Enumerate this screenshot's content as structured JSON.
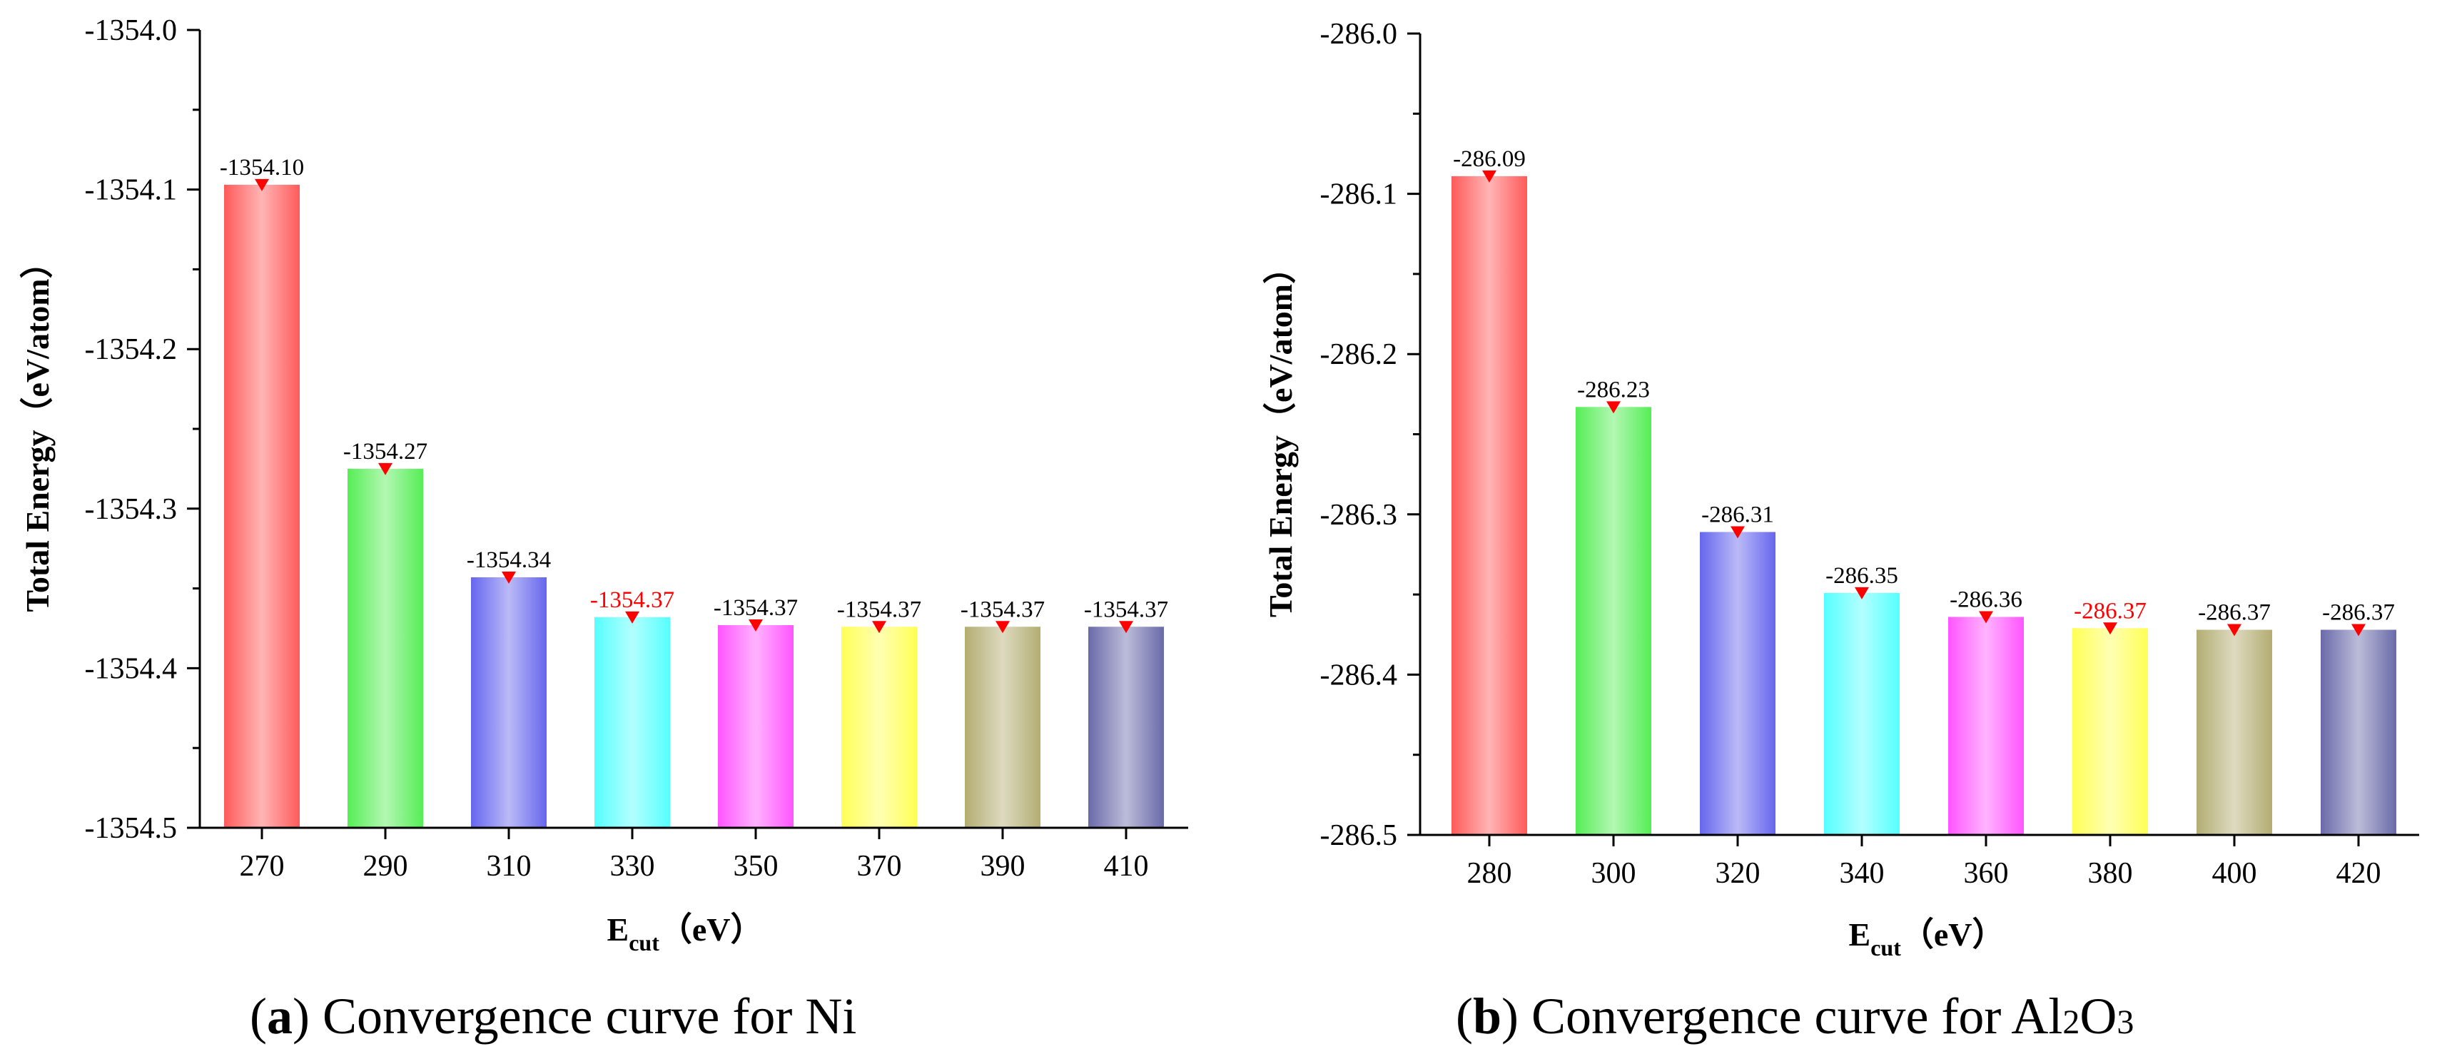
{
  "chart_data": [
    {
      "type": "bar",
      "caption_letter": "a",
      "caption_text": "Convergence curve for Ni",
      "xlabel_main": "E",
      "xlabel_sub": "cut",
      "xlabel_unit": "（eV）",
      "ylabel": "Total Energy（eV/atom）",
      "ylim": [
        -1354.5,
        -1354.0
      ],
      "yticks": [
        "-1354.0",
        "-1354.1",
        "-1354.2",
        "-1354.3",
        "-1354.4",
        "-1354.5"
      ],
      "categories": [
        "270",
        "290",
        "310",
        "330",
        "350",
        "370",
        "390",
        "410"
      ],
      "values": [
        -1354.097,
        -1354.275,
        -1354.343,
        -1354.368,
        -1354.373,
        -1354.374,
        -1354.374,
        -1354.374
      ],
      "value_labels": [
        "-1354.10",
        "-1354.27",
        "-1354.34",
        "-1354.37",
        "-1354.37",
        "-1354.37",
        "-1354.37",
        "-1354.37"
      ],
      "highlight_index": 3,
      "colors": [
        "#ff5a5a",
        "#55ee55",
        "#6666ee",
        "#55ffff",
        "#ff55ff",
        "#ffff55",
        "#b3ad72",
        "#6a6aaa"
      ]
    },
    {
      "type": "bar",
      "caption_letter": "b",
      "caption_text": "Convergence curve for Al",
      "caption_sub1": "2",
      "caption_mid": "O",
      "caption_sub2": "3",
      "xlabel_main": "E",
      "xlabel_sub": "cut",
      "xlabel_unit": "（eV）",
      "ylabel": "Total Energy（eV/atom）",
      "ylim": [
        -286.5,
        -286.0
      ],
      "yticks": [
        "-286.0",
        "-286.1",
        "-286.2",
        "-286.3",
        "-286.4",
        "-286.5"
      ],
      "categories": [
        "280",
        "300",
        "320",
        "340",
        "360",
        "380",
        "400",
        "420"
      ],
      "values": [
        -286.089,
        -286.233,
        -286.311,
        -286.349,
        -286.364,
        -286.371,
        -286.372,
        -286.372
      ],
      "value_labels": [
        "-286.09",
        "-286.23",
        "-286.31",
        "-286.35",
        "-286.36",
        "-286.37",
        "-286.37",
        "-286.37"
      ],
      "highlight_index": 5,
      "colors": [
        "#ff5a5a",
        "#55ee55",
        "#6666ee",
        "#55ffff",
        "#ff55ff",
        "#ffff55",
        "#b3ad72",
        "#6a6aaa"
      ]
    }
  ],
  "colors": {
    "axis": "#000000",
    "marker": "#ff0000",
    "highlight_label": "#ff0000",
    "normal_label": "#000000"
  }
}
